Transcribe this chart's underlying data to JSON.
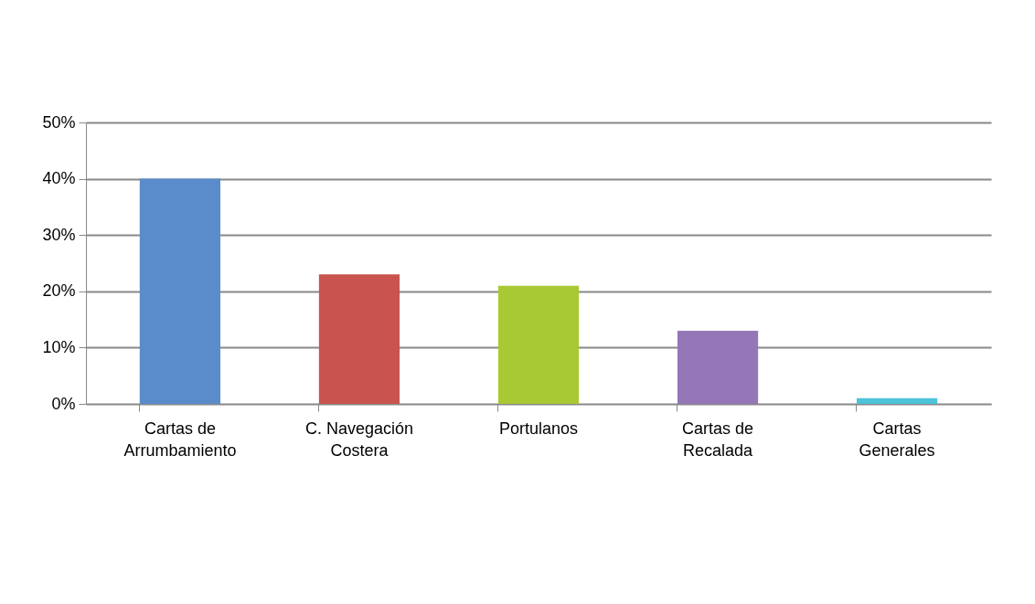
{
  "chart_data": {
    "type": "bar",
    "categories": [
      "Cartas de Arrumbamiento",
      "C. Navegación Costera",
      "Portulanos",
      "Cartas de Recalada",
      "Cartas Generales"
    ],
    "values": [
      40,
      23,
      21,
      13,
      1
    ],
    "colors": [
      "#5a8ccb",
      "#c9544f",
      "#a9c934",
      "#9577b8",
      "#4cc3d9"
    ],
    "ylim": [
      0,
      50
    ],
    "yticks": [
      {
        "value": 0,
        "label": "0%"
      },
      {
        "value": 10,
        "label": "10%"
      },
      {
        "value": 20,
        "label": "20%"
      },
      {
        "value": 30,
        "label": "30%"
      },
      {
        "value": 40,
        "label": "40%"
      },
      {
        "value": 50,
        "label": "50%"
      }
    ],
    "grid": true,
    "legend": false
  }
}
